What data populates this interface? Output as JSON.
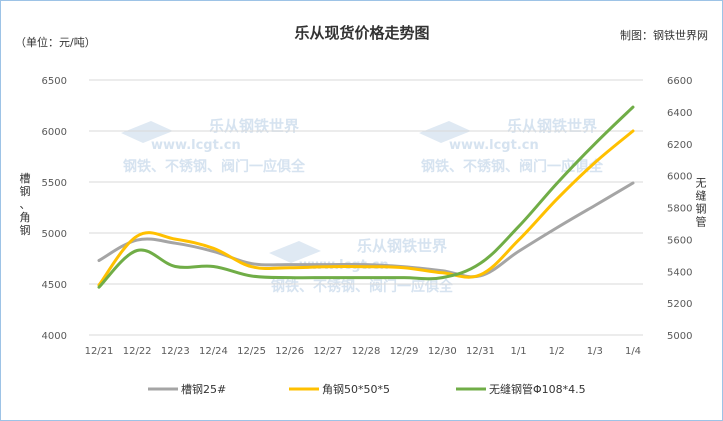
{
  "chart_data": {
    "type": "line",
    "title": "乐从现货价格走势图",
    "unit_label": "（单位：元/吨）",
    "source_label": "制图：钢铁世界网",
    "ylabel_left": "槽钢、角钢",
    "ylabel_right": "无缝钢管",
    "categories": [
      "12/21",
      "12/22",
      "12/23",
      "12/24",
      "12/25",
      "12/26",
      "12/27",
      "12/28",
      "12/29",
      "12/30",
      "12/31",
      "1/1",
      "1/2",
      "1/3",
      "1/4"
    ],
    "ylim_left": [
      4000,
      6500
    ],
    "yticks_left": [
      4000,
      4500,
      5000,
      5500,
      6000,
      6500
    ],
    "ylim_right": [
      5000,
      6600
    ],
    "yticks_right": [
      5000,
      5200,
      5400,
      5600,
      5800,
      6000,
      6200,
      6400,
      6600
    ],
    "grid": true,
    "legend_position": "bottom",
    "series": [
      {
        "name": "槽钢25#",
        "axis": "left",
        "color": "#a5a5a5",
        "values": [
          4730,
          4930,
          4900,
          4820,
          4700,
          4690,
          4690,
          4690,
          4670,
          4630,
          4580,
          4820,
          5050,
          5270,
          5490
        ]
      },
      {
        "name": "角钢50*50*5",
        "axis": "left",
        "color": "#ffc000",
        "values": [
          4490,
          4970,
          4940,
          4850,
          4670,
          4660,
          4670,
          4670,
          4660,
          4610,
          4590,
          4930,
          5330,
          5690,
          6000
        ]
      },
      {
        "name": "无缝钢管Φ108*4.5",
        "axis": "right",
        "color": "#70ad47",
        "values": [
          5300,
          5530,
          5430,
          5430,
          5370,
          5360,
          5360,
          5360,
          5360,
          5360,
          5450,
          5680,
          5950,
          6200,
          6430
        ]
      }
    ]
  },
  "watermark": {
    "brand": "乐从钢铁世界",
    "domain": "www.lcgt.cn",
    "slogan": "钢铁、不锈钢、阀门一应俱全"
  }
}
